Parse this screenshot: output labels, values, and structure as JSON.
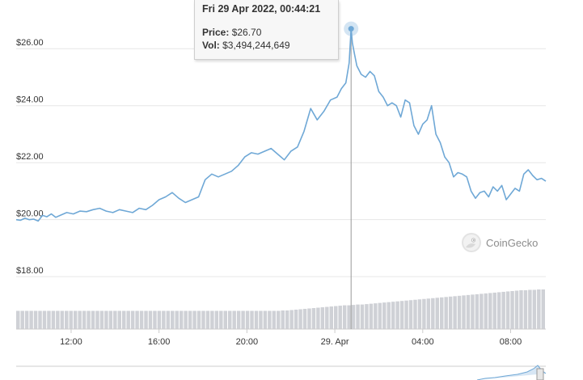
{
  "tooltip": {
    "date": "Fri 29 Apr 2022, 00:44:21",
    "price_label": "Price:",
    "price_value": "$26.70",
    "vol_label": "Vol:",
    "vol_value": "$3,494,244,649"
  },
  "watermark": "CoinGecko",
  "chart_data": {
    "type": "line",
    "title": "",
    "xlabel": "",
    "ylabel": "",
    "y_tick_labels": [
      "$18.00",
      "$20.00",
      "$22.00",
      "$24.00",
      "$26.00"
    ],
    "y_tick_values": [
      18,
      20,
      22,
      24,
      26
    ],
    "x_tick_labels": [
      "12:00",
      "16:00",
      "20:00",
      "29. Apr",
      "04:00",
      "08:00"
    ],
    "x_tick_values": [
      12,
      16,
      20,
      24,
      28,
      32
    ],
    "x_unit": "hours since 28 Apr 2022 00:00",
    "xlim": [
      9.5,
      33.6
    ],
    "ylim": [
      16.5,
      27.0
    ],
    "grid": true,
    "legend": "none",
    "line_color": "#6fa8d6",
    "highlight": {
      "x": 24.74,
      "y": 26.7
    },
    "series": [
      {
        "x": [
          9.5,
          9.7,
          9.9,
          10.1,
          10.3,
          10.5,
          10.7,
          10.9,
          11.1,
          11.3,
          11.5,
          11.8,
          12.1,
          12.4,
          12.7,
          13.0,
          13.3,
          13.6,
          13.9,
          14.2,
          14.5,
          14.8,
          15.1,
          15.4,
          15.7,
          16.0,
          16.3,
          16.6,
          16.9,
          17.2,
          17.5,
          17.8,
          18.1,
          18.4,
          18.7,
          19.0,
          19.3,
          19.6,
          19.9,
          20.2,
          20.5,
          20.8,
          21.1,
          21.4,
          21.7,
          22.0,
          22.3,
          22.6,
          22.9,
          23.2,
          23.5,
          23.8,
          24.1,
          24.3,
          24.5,
          24.65,
          24.74,
          24.8,
          24.9,
          25.0,
          25.2,
          25.4,
          25.6,
          25.8,
          26.0,
          26.2,
          26.4,
          26.6,
          26.8,
          27.0,
          27.2,
          27.4,
          27.6,
          27.8,
          28.0,
          28.2,
          28.4,
          28.6,
          28.8,
          29.0,
          29.2,
          29.4,
          29.6,
          29.8,
          30.0,
          30.2,
          30.4,
          30.6,
          30.8,
          31.0,
          31.2,
          31.4,
          31.6,
          31.8,
          32.0,
          32.2,
          32.4,
          32.6,
          32.8,
          33.0,
          33.2,
          33.4,
          33.6
        ],
        "y": [
          20.0,
          19.98,
          20.05,
          20.0,
          20.02,
          19.95,
          20.15,
          20.1,
          20.2,
          20.08,
          20.15,
          20.25,
          20.2,
          20.3,
          20.28,
          20.35,
          20.4,
          20.3,
          20.25,
          20.35,
          20.3,
          20.25,
          20.4,
          20.35,
          20.5,
          20.7,
          20.8,
          20.95,
          20.75,
          20.6,
          20.7,
          20.8,
          21.4,
          21.6,
          21.5,
          21.6,
          21.7,
          21.9,
          22.2,
          22.35,
          22.3,
          22.4,
          22.5,
          22.3,
          22.1,
          22.4,
          22.55,
          23.1,
          23.9,
          23.5,
          23.8,
          24.2,
          24.3,
          24.6,
          24.8,
          25.5,
          26.7,
          26.2,
          25.8,
          25.4,
          25.1,
          25.0,
          25.2,
          25.05,
          24.5,
          24.3,
          24.0,
          24.1,
          24.0,
          23.6,
          24.2,
          24.1,
          23.3,
          23.0,
          23.35,
          23.5,
          24.0,
          23.0,
          22.7,
          22.2,
          22.0,
          21.5,
          21.65,
          21.6,
          21.5,
          21.0,
          20.75,
          20.95,
          21.0,
          20.8,
          21.15,
          21.0,
          21.2,
          20.7,
          20.9,
          21.1,
          21.0,
          21.6,
          21.75,
          21.55,
          21.4,
          21.45,
          21.35
        ]
      }
    ],
    "volume_bars": {
      "color": "#cfd1d6",
      "levels": [
        0.46,
        0.46,
        0.46,
        0.46,
        0.46,
        0.46,
        0.46,
        0.46,
        0.46,
        0.46,
        0.46,
        0.46,
        0.46,
        0.46,
        0.46,
        0.46,
        0.46,
        0.46,
        0.46,
        0.46,
        0.46,
        0.46,
        0.46,
        0.46,
        0.46,
        0.46,
        0.46,
        0.46,
        0.46,
        0.46,
        0.46,
        0.46,
        0.46,
        0.46,
        0.46,
        0.46,
        0.46,
        0.46,
        0.46,
        0.46,
        0.46,
        0.46,
        0.46,
        0.46,
        0.46,
        0.46,
        0.46,
        0.46,
        0.46,
        0.46,
        0.46,
        0.46,
        0.46,
        0.46,
        0.46,
        0.46,
        0.46,
        0.46,
        0.46,
        0.46,
        0.47,
        0.47,
        0.48,
        0.49,
        0.5,
        0.51,
        0.52,
        0.53,
        0.54,
        0.55,
        0.56,
        0.57,
        0.58,
        0.59,
        0.6,
        0.6,
        0.61,
        0.62,
        0.62,
        0.63,
        0.64,
        0.65,
        0.66,
        0.67,
        0.68,
        0.69,
        0.7,
        0.71,
        0.72,
        0.73,
        0.74,
        0.75,
        0.76,
        0.77,
        0.78,
        0.79,
        0.8,
        0.81,
        0.82,
        0.83,
        0.84,
        0.85,
        0.86,
        0.87,
        0.88,
        0.89,
        0.9,
        0.91,
        0.92,
        0.93,
        0.94,
        0.95,
        0.96,
        0.97,
        0.98,
        0.98,
        0.99,
        0.99,
        1.0,
        1.0
      ]
    }
  }
}
